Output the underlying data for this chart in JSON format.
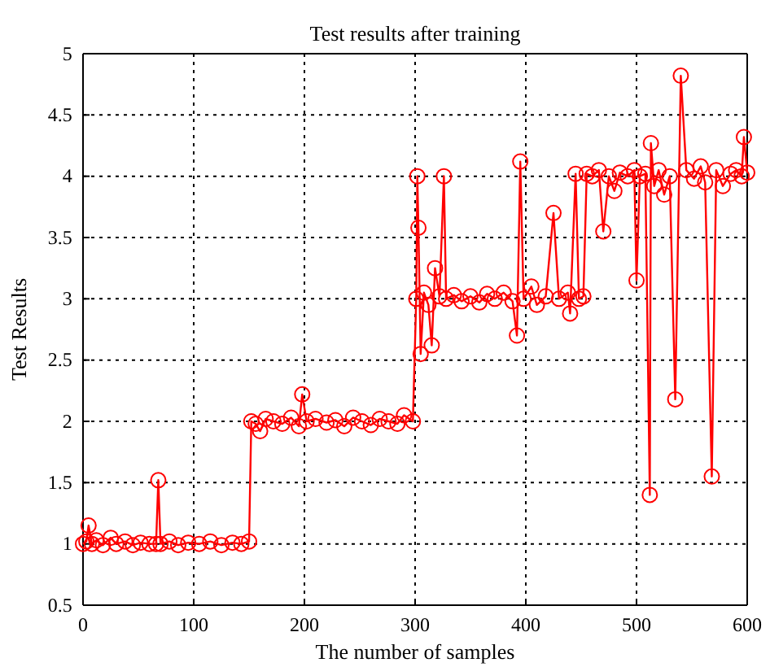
{
  "chart_data": {
    "type": "line",
    "title": "Test results after training",
    "xlabel": "The number of samples",
    "ylabel": "Test Results",
    "xlim": [
      0,
      600
    ],
    "xticks": [
      0,
      100,
      200,
      300,
      400,
      500,
      600
    ],
    "ylim": [
      0.5,
      5
    ],
    "yticks": [
      0.5,
      1,
      1.5,
      2,
      2.5,
      3,
      3.5,
      4,
      4.5,
      5
    ],
    "grid": true,
    "marker": "circle",
    "line_style": "solid",
    "series": [
      {
        "color": "#ff0000",
        "x": [
          0,
          3,
          5,
          8,
          12,
          18,
          25,
          30,
          38,
          45,
          52,
          60,
          66,
          68,
          70,
          78,
          86,
          95,
          105,
          115,
          125,
          135,
          143,
          150,
          152,
          156,
          160,
          165,
          172,
          180,
          188,
          195,
          198,
          202,
          210,
          220,
          228,
          236,
          244,
          252,
          260,
          268,
          276,
          284,
          290,
          298,
          301,
          302,
          303,
          305,
          308,
          312,
          315,
          318,
          322,
          326,
          328,
          335,
          342,
          350,
          358,
          365,
          372,
          380,
          388,
          392,
          395,
          398,
          405,
          410,
          418,
          425,
          430,
          438,
          440,
          445,
          448,
          452,
          455,
          460,
          466,
          470,
          475,
          480,
          485,
          492,
          498,
          500,
          503,
          508,
          512,
          513,
          516,
          520,
          525,
          530,
          535,
          540,
          545,
          552,
          558,
          562,
          568,
          572,
          578,
          585,
          590,
          595,
          597,
          600
        ],
        "values": [
          1.0,
          1.02,
          1.15,
          1.0,
          1.03,
          0.99,
          1.05,
          1.0,
          1.02,
          0.99,
          1.01,
          1.0,
          1.0,
          1.52,
          1.0,
          1.02,
          0.99,
          1.01,
          1.0,
          1.02,
          0.99,
          1.01,
          1.0,
          1.02,
          2.0,
          1.98,
          1.92,
          2.02,
          2.0,
          1.98,
          2.03,
          1.96,
          2.22,
          2.0,
          2.02,
          1.99,
          2.01,
          1.96,
          2.03,
          2.0,
          1.97,
          2.02,
          2.0,
          1.98,
          2.05,
          2.0,
          3.0,
          4.0,
          3.58,
          2.55,
          3.05,
          2.95,
          2.62,
          3.25,
          3.02,
          4.0,
          3.0,
          3.03,
          2.98,
          3.02,
          2.97,
          3.04,
          3.0,
          3.05,
          2.98,
          2.7,
          4.12,
          3.0,
          3.1,
          2.95,
          3.02,
          3.7,
          3.0,
          3.05,
          2.88,
          4.02,
          3.0,
          3.02,
          4.02,
          4.0,
          4.05,
          3.55,
          4.0,
          3.88,
          4.03,
          4.0,
          4.05,
          3.15,
          4.0,
          4.02,
          1.4,
          4.27,
          3.92,
          4.05,
          3.85,
          4.0,
          2.18,
          4.82,
          4.05,
          3.98,
          4.08,
          3.95,
          1.55,
          4.05,
          3.92,
          4.02,
          4.05,
          4.0,
          4.32,
          4.03
        ]
      }
    ]
  }
}
